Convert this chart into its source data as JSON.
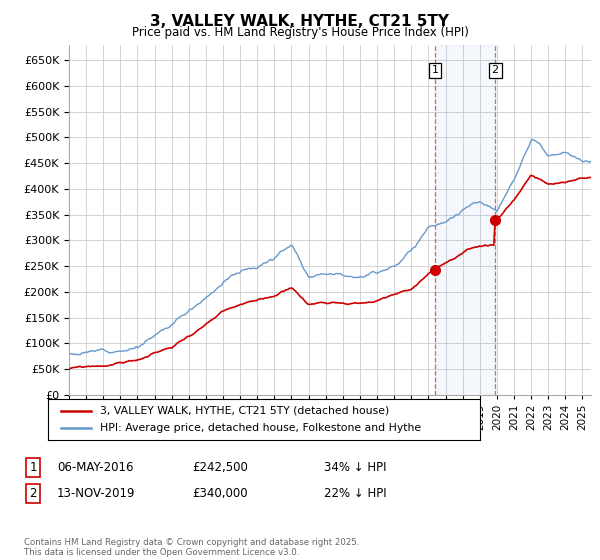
{
  "title": "3, VALLEY WALK, HYTHE, CT21 5TY",
  "subtitle": "Price paid vs. HM Land Registry's House Price Index (HPI)",
  "ylim": [
    0,
    680000
  ],
  "yticks": [
    0,
    50000,
    100000,
    150000,
    200000,
    250000,
    300000,
    350000,
    400000,
    450000,
    500000,
    550000,
    600000,
    650000
  ],
  "hpi_color": "#6699cc",
  "price_color": "#cc0000",
  "marker1_year": 2016.37,
  "marker2_year": 2019.87,
  "marker1_price_val": 242500,
  "marker2_price_val": 340000,
  "marker1_date": "06-MAY-2016",
  "marker2_date": "13-NOV-2019",
  "marker1_pct": "34% ↓ HPI",
  "marker2_pct": "22% ↓ HPI",
  "legend_house": "3, VALLEY WALK, HYTHE, CT21 5TY (detached house)",
  "legend_hpi": "HPI: Average price, detached house, Folkestone and Hythe",
  "footer": "Contains HM Land Registry data © Crown copyright and database right 2025.\nThis data is licensed under the Open Government Licence v3.0.",
  "background_color": "#ffffff",
  "grid_color": "#cccccc",
  "xlim_start": 1995,
  "xlim_end": 2025.5
}
